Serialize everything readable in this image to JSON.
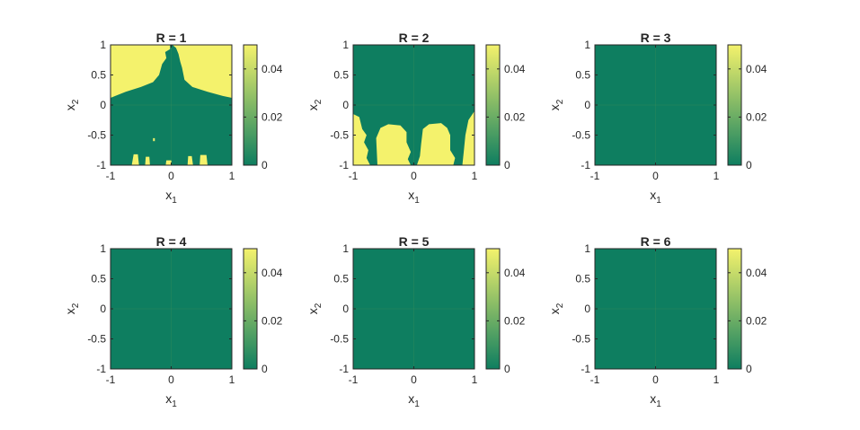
{
  "colors": {
    "low": "#0e7e60",
    "high": "#f4f26c",
    "axis": "#262626",
    "background": "#ffffff"
  },
  "chart_data": [
    {
      "type": "heatmap",
      "title": "R = 1",
      "xlabel": "x",
      "xlabel_sub": "1",
      "ylabel": "x",
      "ylabel_sub": "2",
      "xlim": [
        -1,
        1
      ],
      "ylim": [
        -1,
        1
      ],
      "xticks": [
        "-1",
        "0",
        "1"
      ],
      "yticks": [
        "1",
        "0.5",
        "0",
        "-0.5",
        "-1"
      ],
      "colorbar": {
        "range": [
          0,
          0.05
        ],
        "ticks": [
          "0.04",
          "0.02",
          "0"
        ]
      },
      "yellow_regions": [
        [
          [
            -1,
            1
          ],
          [
            -0.02,
            1
          ],
          [
            -0.02,
            0.93
          ],
          [
            -0.1,
            0.88
          ],
          [
            -0.08,
            0.78
          ],
          [
            -0.15,
            0.68
          ],
          [
            -0.2,
            0.5
          ],
          [
            -0.3,
            0.38
          ],
          [
            -0.5,
            0.3
          ],
          [
            -0.75,
            0.22
          ],
          [
            -1,
            0.12
          ]
        ],
        [
          [
            0.02,
            1
          ],
          [
            1,
            1
          ],
          [
            1,
            0.12
          ],
          [
            0.85,
            0.15
          ],
          [
            0.6,
            0.22
          ],
          [
            0.35,
            0.3
          ],
          [
            0.22,
            0.42
          ],
          [
            0.18,
            0.62
          ],
          [
            0.15,
            0.72
          ],
          [
            0.12,
            0.85
          ],
          [
            0.08,
            0.95
          ]
        ],
        [
          [
            -0.62,
            -0.82
          ],
          [
            -0.55,
            -0.82
          ],
          [
            -0.53,
            -1
          ],
          [
            -0.65,
            -1
          ]
        ],
        [
          [
            -0.42,
            -0.86
          ],
          [
            -0.36,
            -0.86
          ],
          [
            -0.35,
            -1
          ],
          [
            -0.43,
            -1
          ]
        ],
        [
          [
            0.28,
            -0.85
          ],
          [
            0.34,
            -0.85
          ],
          [
            0.36,
            -1
          ],
          [
            0.27,
            -1
          ]
        ],
        [
          [
            0.48,
            -0.83
          ],
          [
            0.58,
            -0.83
          ],
          [
            0.6,
            -1
          ],
          [
            0.47,
            -1
          ]
        ],
        [
          [
            -0.08,
            -0.92
          ],
          [
            0.0,
            -0.92
          ],
          [
            0.01,
            -1
          ],
          [
            -0.09,
            -1
          ]
        ],
        [
          [
            -0.3,
            -0.55
          ],
          [
            -0.27,
            -0.55
          ],
          [
            -0.27,
            -0.6
          ],
          [
            -0.3,
            -0.6
          ]
        ]
      ]
    },
    {
      "type": "heatmap",
      "title": "R = 2",
      "xlabel": "x",
      "xlabel_sub": "1",
      "ylabel": "x",
      "ylabel_sub": "2",
      "xlim": [
        -1,
        1
      ],
      "ylim": [
        -1,
        1
      ],
      "xticks": [
        "-1",
        "0",
        "1"
      ],
      "yticks": [
        "1",
        "0.5",
        "0",
        "-0.5",
        "-1"
      ],
      "colorbar": {
        "range": [
          0,
          0.05
        ],
        "ticks": [
          "0.04",
          "0.02",
          "0"
        ]
      },
      "yellow_regions": [
        [
          [
            -1,
            -0.15
          ],
          [
            -0.9,
            -0.2
          ],
          [
            -0.85,
            -0.4
          ],
          [
            -0.78,
            -0.5
          ],
          [
            -0.82,
            -0.62
          ],
          [
            -0.75,
            -0.75
          ],
          [
            -0.78,
            -0.88
          ],
          [
            -0.72,
            -1
          ],
          [
            -1,
            -1
          ]
        ],
        [
          [
            -0.6,
            -1
          ],
          [
            -0.62,
            -0.55
          ],
          [
            -0.55,
            -0.38
          ],
          [
            -0.42,
            -0.32
          ],
          [
            -0.22,
            -0.34
          ],
          [
            -0.12,
            -0.45
          ],
          [
            -0.12,
            -0.62
          ],
          [
            -0.05,
            -0.78
          ],
          [
            -0.1,
            -0.9
          ],
          [
            -0.05,
            -1
          ]
        ],
        [
          [
            0.05,
            -1
          ],
          [
            0.1,
            -0.85
          ],
          [
            0.12,
            -0.65
          ],
          [
            0.15,
            -0.4
          ],
          [
            0.25,
            -0.32
          ],
          [
            0.45,
            -0.3
          ],
          [
            0.55,
            -0.38
          ],
          [
            0.6,
            -0.5
          ],
          [
            0.6,
            -0.75
          ],
          [
            0.68,
            -0.88
          ],
          [
            0.65,
            -1
          ]
        ],
        [
          [
            0.8,
            -1
          ],
          [
            0.82,
            -0.8
          ],
          [
            0.85,
            -0.5
          ],
          [
            0.9,
            -0.25
          ],
          [
            1,
            -0.1
          ],
          [
            1,
            -1
          ]
        ]
      ]
    },
    {
      "type": "heatmap",
      "title": "R = 3",
      "xlabel": "x",
      "xlabel_sub": "1",
      "ylabel": "x",
      "ylabel_sub": "2",
      "xlim": [
        -1,
        1
      ],
      "ylim": [
        -1,
        1
      ],
      "xticks": [
        "-1",
        "0",
        "1"
      ],
      "yticks": [
        "1",
        "0.5",
        "0",
        "-0.5",
        "-1"
      ],
      "colorbar": {
        "range": [
          0,
          0.05
        ],
        "ticks": [
          "0.04",
          "0.02",
          "0"
        ]
      },
      "yellow_regions": []
    },
    {
      "type": "heatmap",
      "title": "R = 4",
      "xlabel": "x",
      "xlabel_sub": "1",
      "ylabel": "x",
      "ylabel_sub": "2",
      "xlim": [
        -1,
        1
      ],
      "ylim": [
        -1,
        1
      ],
      "xticks": [
        "-1",
        "0",
        "1"
      ],
      "yticks": [
        "1",
        "0.5",
        "0",
        "-0.5",
        "-1"
      ],
      "colorbar": {
        "range": [
          0,
          0.05
        ],
        "ticks": [
          "0.04",
          "0.02",
          "0"
        ]
      },
      "yellow_regions": []
    },
    {
      "type": "heatmap",
      "title": "R = 5",
      "xlabel": "x",
      "xlabel_sub": "1",
      "ylabel": "x",
      "ylabel_sub": "2",
      "xlim": [
        -1,
        1
      ],
      "ylim": [
        -1,
        1
      ],
      "xticks": [
        "-1",
        "0",
        "1"
      ],
      "yticks": [
        "1",
        "0.5",
        "0",
        "-0.5",
        "-1"
      ],
      "colorbar": {
        "range": [
          0,
          0.05
        ],
        "ticks": [
          "0.04",
          "0.02",
          "0"
        ]
      },
      "yellow_regions": []
    },
    {
      "type": "heatmap",
      "title": "R = 6",
      "xlabel": "x",
      "xlabel_sub": "1",
      "ylabel": "x",
      "ylabel_sub": "2",
      "xlim": [
        -1,
        1
      ],
      "ylim": [
        -1,
        1
      ],
      "xticks": [
        "-1",
        "0",
        "1"
      ],
      "yticks": [
        "1",
        "0.5",
        "0",
        "-0.5",
        "-1"
      ],
      "colorbar": {
        "range": [
          0,
          0.05
        ],
        "ticks": [
          "0.04",
          "0.02",
          "0"
        ]
      },
      "yellow_regions": []
    }
  ]
}
